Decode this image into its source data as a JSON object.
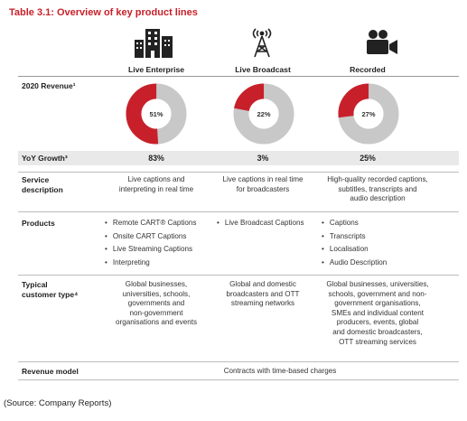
{
  "title": "Table 3.1:  Overview of key product lines",
  "columns": [
    {
      "label": "Live Enterprise",
      "icon": "office-building-icon"
    },
    {
      "label": "Live Broadcast",
      "icon": "broadcast-tower-icon"
    },
    {
      "label": "Recorded",
      "icon": "video-camera-icon"
    }
  ],
  "rows": {
    "revenue_label": "2020 Revenue¹",
    "revenue_values": [
      51,
      22,
      27
    ],
    "revenue_text": [
      "51%",
      "22%",
      "27%"
    ],
    "growth_label": "YoY Growth³",
    "growth_values": [
      "83%",
      "3%",
      "25%"
    ],
    "service_label_1": "Service",
    "service_label_2": "description",
    "service_desc": [
      [
        "Live captions and",
        "interpreting in real time"
      ],
      [
        "Live captions in real time",
        "for broadcasters"
      ],
      [
        "High-quality recorded captions,",
        "subtitles, transcripts and",
        "audio description"
      ]
    ],
    "products_label": "Products",
    "products": [
      [
        "Remote CART® Captions",
        "Onsite CART Captions",
        "Live Streaming Captions",
        "Interpreting"
      ],
      [
        "Live Broadcast Captions"
      ],
      [
        "Captions",
        "Transcripts",
        "Localisation",
        "Audio Description"
      ]
    ],
    "customer_label_1": "Typical",
    "customer_label_2": "customer type⁴",
    "customers": [
      [
        "Global businesses,",
        "universities, schools,",
        "governments and",
        "non-government",
        "organisations and events"
      ],
      [
        "Global and domestic",
        "broadcasters and OTT",
        "streaming networks"
      ],
      [
        "Global businesses, universities,",
        "schools, government and non-",
        "government organisations,",
        "SMEs and individual content",
        "producers, events, global",
        "and domestic broadcasters,",
        "OTT streaming services"
      ]
    ],
    "revenue_model_label": "Revenue model",
    "revenue_model": "Contracts with time-based charges"
  },
  "source": "(Source: Company Reports)",
  "colors": {
    "accent": "#c8202a",
    "donut_base": "#c8c8c8",
    "band": "#e9e9e9"
  }
}
